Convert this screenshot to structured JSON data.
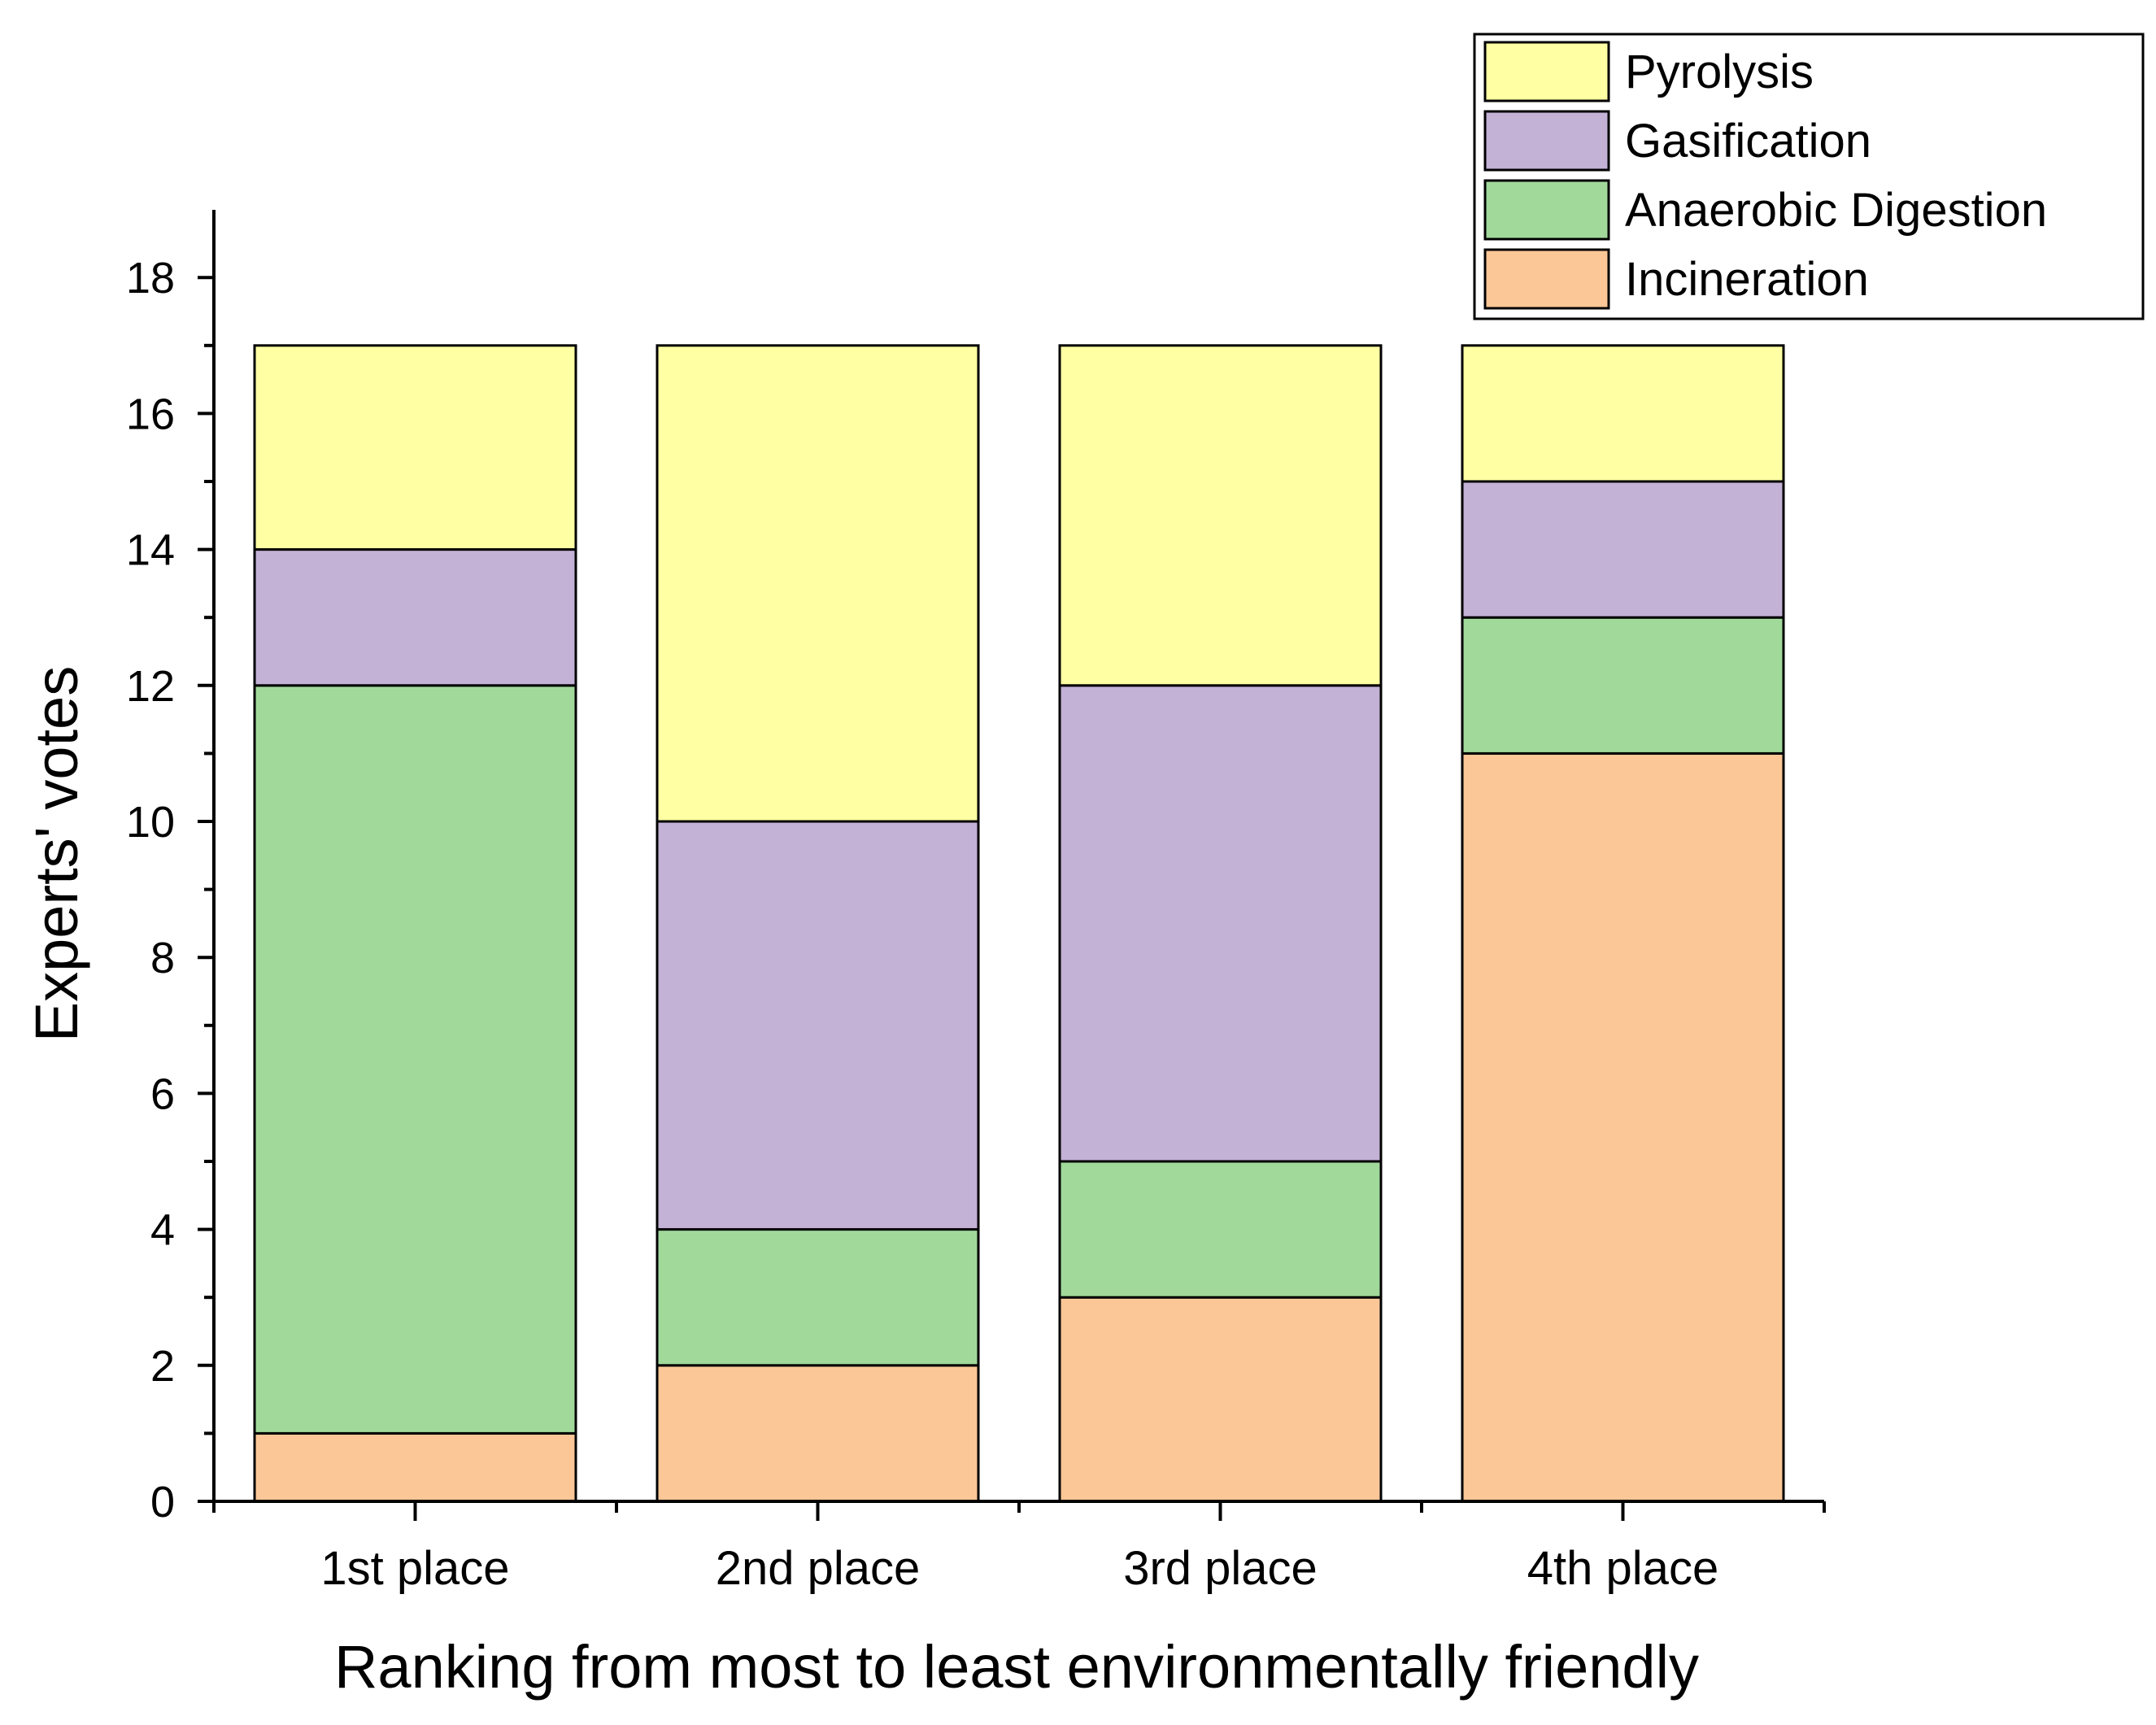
{
  "chart_data": {
    "type": "bar",
    "stacked": true,
    "categories": [
      "1st place",
      "2nd place",
      "3rd place",
      "4th place"
    ],
    "series": [
      {
        "name": "Incineration",
        "values": [
          1,
          2,
          3,
          11
        ],
        "color": "#FCC797"
      },
      {
        "name": "Anaerobic Digestion",
        "values": [
          11,
          2,
          2,
          2
        ],
        "color": "#A1D99B"
      },
      {
        "name": "Gasification",
        "values": [
          2,
          6,
          7,
          2
        ],
        "color": "#C3B1D6"
      },
      {
        "name": "Pyrolysis",
        "values": [
          3,
          7,
          5,
          2
        ],
        "color": "#FFFFA3"
      }
    ],
    "legend_order": [
      "Pyrolysis",
      "Gasification",
      "Anaerobic Digestion",
      "Incineration"
    ],
    "xlabel": "Ranking from most to least environmentally friendly",
    "ylabel": "Experts' votes",
    "ylim": [
      0,
      19
    ],
    "yticks": [
      0,
      2,
      4,
      6,
      8,
      10,
      12,
      14,
      16,
      18
    ],
    "ytick_labels": [
      "0",
      "2",
      "4",
      "6",
      "8",
      "10",
      "12",
      "14",
      "16",
      "18"
    ],
    "legend_position": "top-right",
    "grid": false
  }
}
